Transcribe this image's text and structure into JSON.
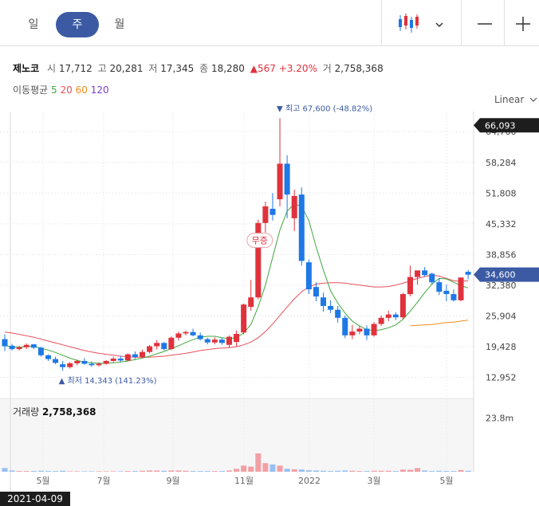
{
  "toolbar": {
    "periods": [
      {
        "label": "일",
        "selected": false
      },
      {
        "label": "주",
        "selected": true
      },
      {
        "label": "월",
        "selected": false
      }
    ],
    "chart_type_icon": "candlestick-icon",
    "dropdown_icon": "chevron-down-icon",
    "minimize_icon": "minus-icon",
    "add_icon": "plus-icon"
  },
  "info": {
    "name": "제노코",
    "open_label": "시",
    "open": "17,712",
    "high_label": "고",
    "high": "20,281",
    "low_label": "저",
    "low": "17,345",
    "close_label": "종",
    "close": "18,280",
    "change": "▲567",
    "change_pct": "+3.20%",
    "volume_label": "거",
    "volume": "2,758,368"
  },
  "ma": {
    "label": "이동평균",
    "periods": [
      {
        "label": "5",
        "color": "#3fa83f"
      },
      {
        "label": "20",
        "color": "#e8505b"
      },
      {
        "label": "60",
        "color": "#f08c1c"
      },
      {
        "label": "120",
        "color": "#7a3fd1"
      }
    ]
  },
  "scale_label": "Linear",
  "volume_panel": {
    "label": "거래량",
    "value": "2,758,368",
    "axis_label": "23.8m"
  },
  "cursor_date": "2021-04-09",
  "colors": {
    "up": "#e0323c",
    "down": "#1e78e6",
    "ma5": "#3fa83f",
    "ma20": "#e8505b",
    "ma60": "#f08c1c",
    "accent": "#3c5aa4"
  },
  "chart_data": {
    "type": "candlestick",
    "title": "",
    "ylim": [
      9000,
      69000
    ],
    "y_ticks": [
      "64,760",
      "58,284",
      "51,808",
      "45,332",
      "38,856",
      "32,380",
      "25,904",
      "19,428",
      "12,952"
    ],
    "x_ticks": [
      "5월",
      "7월",
      "9월",
      "11월",
      "2022",
      "3월",
      "5월"
    ],
    "current_high_label": "66,093",
    "current_price_label": "34,600",
    "max_annotation": "최고 67,600 (-48.82%)",
    "min_annotation": "최저 14,343 (141.23%)",
    "event_badge": "무증",
    "candles": [
      [
        21000,
        22000,
        18500,
        19500,
        1.5
      ],
      [
        19600,
        20000,
        18600,
        18900,
        0.5
      ],
      [
        18900,
        19600,
        18600,
        19300,
        0.3
      ],
      [
        19300,
        20100,
        18900,
        19800,
        0.3
      ],
      [
        19900,
        20000,
        18900,
        19200,
        0.3
      ],
      [
        19200,
        19400,
        17300,
        17600,
        0.4
      ],
      [
        17600,
        17800,
        16400,
        16800,
        0.3
      ],
      [
        16800,
        17300,
        15700,
        16000,
        0.3
      ],
      [
        15700,
        16400,
        14343,
        15100,
        0.4
      ],
      [
        15100,
        16200,
        14800,
        15900,
        0.2
      ],
      [
        15900,
        16700,
        15500,
        16400,
        0.2
      ],
      [
        16400,
        17000,
        15600,
        15800,
        0.2
      ],
      [
        15800,
        16300,
        15200,
        15500,
        0.2
      ],
      [
        15500,
        16100,
        15200,
        15800,
        0.2
      ],
      [
        15800,
        16600,
        15600,
        16400,
        0.2
      ],
      [
        16400,
        17300,
        16100,
        16900,
        0.2
      ],
      [
        16900,
        17500,
        16200,
        16500,
        0.2
      ],
      [
        16500,
        18000,
        16300,
        17800,
        0.3
      ],
      [
        17800,
        18400,
        16800,
        17200,
        0.3
      ],
      [
        17200,
        18800,
        17000,
        18300,
        0.4
      ],
      [
        18300,
        19800,
        18000,
        19500,
        0.5
      ],
      [
        19500,
        20800,
        18800,
        20200,
        0.5
      ],
      [
        20200,
        20400,
        18600,
        18900,
        0.4
      ],
      [
        18900,
        21600,
        18700,
        21300,
        0.5
      ],
      [
        21300,
        22600,
        20700,
        22200,
        0.5
      ],
      [
        22200,
        22800,
        21800,
        22500,
        0.4
      ],
      [
        22500,
        23200,
        21600,
        21800,
        0.3
      ],
      [
        21800,
        22400,
        20700,
        21000,
        0.3
      ],
      [
        21000,
        21300,
        19900,
        20300,
        0.3
      ],
      [
        20300,
        21400,
        19900,
        20900,
        0.3
      ],
      [
        20900,
        21300,
        19800,
        20200,
        0.3
      ],
      [
        19800,
        21800,
        19200,
        21500,
        0.5
      ],
      [
        20400,
        22800,
        19500,
        22100,
        1.2
      ],
      [
        22400,
        28500,
        22000,
        28300,
        2.5
      ],
      [
        27800,
        33500,
        27000,
        29800,
        2.1
      ],
      [
        29800,
        46200,
        29400,
        45500,
        7.5
      ],
      [
        45500,
        50000,
        43500,
        49000,
        3.5
      ],
      [
        48500,
        51800,
        46000,
        47200,
        3.0
      ],
      [
        50500,
        67600,
        49000,
        58000,
        2.5
      ],
      [
        58000,
        59800,
        46500,
        51500,
        1.2
      ],
      [
        46500,
        52500,
        43800,
        51200,
        1.0
      ],
      [
        51500,
        53000,
        36500,
        37500,
        0.9
      ],
      [
        37200,
        37800,
        30500,
        31500,
        0.6
      ],
      [
        32000,
        33000,
        29000,
        30000,
        0.5
      ],
      [
        29800,
        30800,
        26800,
        28000,
        0.4
      ],
      [
        28000,
        29200,
        26500,
        27200,
        0.3
      ],
      [
        27200,
        28000,
        24500,
        25500,
        0.4
      ],
      [
        25500,
        26000,
        21200,
        21800,
        0.5
      ],
      [
        21800,
        24000,
        21000,
        22600,
        0.4
      ],
      [
        22600,
        23800,
        22000,
        23200,
        0.3
      ],
      [
        23200,
        23900,
        20800,
        21800,
        0.3
      ],
      [
        21800,
        24600,
        21500,
        24200,
        0.4
      ],
      [
        24200,
        26000,
        23800,
        25500,
        0.4
      ],
      [
        25500,
        27000,
        24800,
        26200,
        0.4
      ],
      [
        26200,
        26700,
        25000,
        25600,
        0.3
      ],
      [
        25600,
        30800,
        25200,
        30500,
        0.9
      ],
      [
        30500,
        36500,
        30000,
        34100,
        0.8
      ],
      [
        34100,
        35500,
        32500,
        35500,
        1.5
      ],
      [
        35500,
        36200,
        34200,
        34500,
        0.5
      ],
      [
        34800,
        35000,
        32500,
        33000,
        0.3
      ],
      [
        33000,
        33900,
        30300,
        31000,
        0.4
      ],
      [
        31200,
        32500,
        29000,
        30500,
        0.3
      ],
      [
        30500,
        31500,
        28900,
        29200,
        0.3
      ],
      [
        29200,
        34000,
        29000,
        34000,
        0.7
      ],
      [
        35200,
        35600,
        33600,
        34600,
        0.4
      ]
    ],
    "ma5": [
      19600,
      19400,
      19300,
      19400,
      19500,
      19100,
      18700,
      18200,
      17600,
      17000,
      16500,
      16200,
      16000,
      15900,
      15900,
      16000,
      16200,
      16400,
      16700,
      17000,
      17400,
      17900,
      18400,
      19000,
      19600,
      20300,
      20900,
      21400,
      21600,
      21600,
      21300,
      21100,
      21300,
      22300,
      24100,
      27800,
      32400,
      38300,
      44000,
      48000,
      49500,
      49000,
      46000,
      40500,
      35600,
      31200,
      28600,
      26500,
      24800,
      23800,
      23000,
      22800,
      23000,
      23400,
      24000,
      25200,
      26900,
      28800,
      30800,
      32600,
      33800,
      33700,
      33000,
      32300,
      31800
    ],
    "ma20": [
      22500,
      22300,
      22000,
      21700,
      21400,
      21000,
      20600,
      20200,
      19800,
      19400,
      19000,
      18600,
      18300,
      18000,
      17800,
      17600,
      17400,
      17300,
      17200,
      17200,
      17200,
      17300,
      17400,
      17600,
      17800,
      18000,
      18300,
      18600,
      18800,
      19000,
      19100,
      19200,
      19400,
      19800,
      20400,
      21300,
      22600,
      24200,
      26000,
      27800,
      29500,
      31000,
      32000,
      32600,
      32800,
      32900,
      32900,
      32800,
      32600,
      32400,
      32200,
      32000,
      32000,
      32100,
      32400,
      32800,
      33300,
      33800,
      34200,
      34500,
      34300,
      33800,
      33300,
      33200,
      33300
    ],
    "ma60_tail": [
      [
        56,
        23800
      ],
      [
        57,
        23900
      ],
      [
        58,
        24000
      ],
      [
        59,
        24100
      ],
      [
        60,
        24300
      ],
      [
        61,
        24500
      ],
      [
        62,
        24600
      ],
      [
        63,
        24800
      ],
      [
        64,
        25000
      ]
    ],
    "volume_ylim": [
      0,
      30
    ]
  }
}
